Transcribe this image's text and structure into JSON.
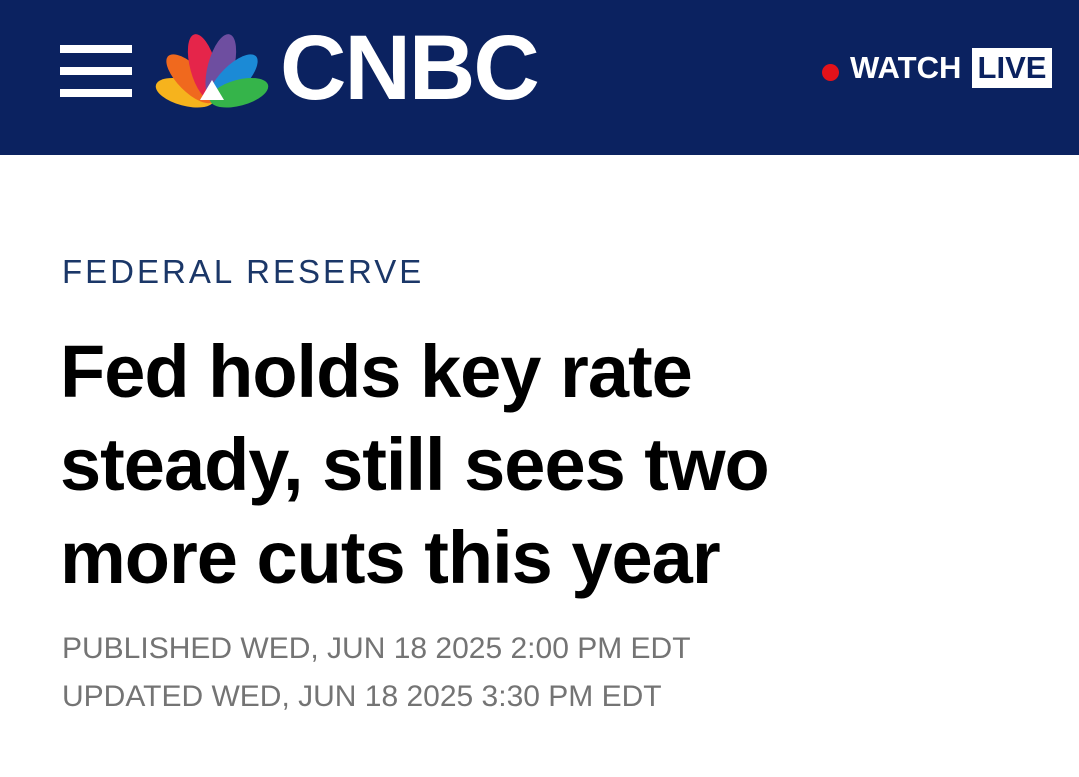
{
  "header": {
    "logo": "CNBC",
    "watch": "WATCH",
    "live": "LIVE"
  },
  "article": {
    "section": "FEDERAL RESERVE",
    "headline": [
      "Fed holds key rate",
      "steady, still sees two",
      "more cuts this year"
    ],
    "published": "PUBLISHED WED, JUN 18 2025 2:00 PM EDT",
    "updated": "UPDATED WED, JUN 18 2025 3:30 PM EDT"
  }
}
